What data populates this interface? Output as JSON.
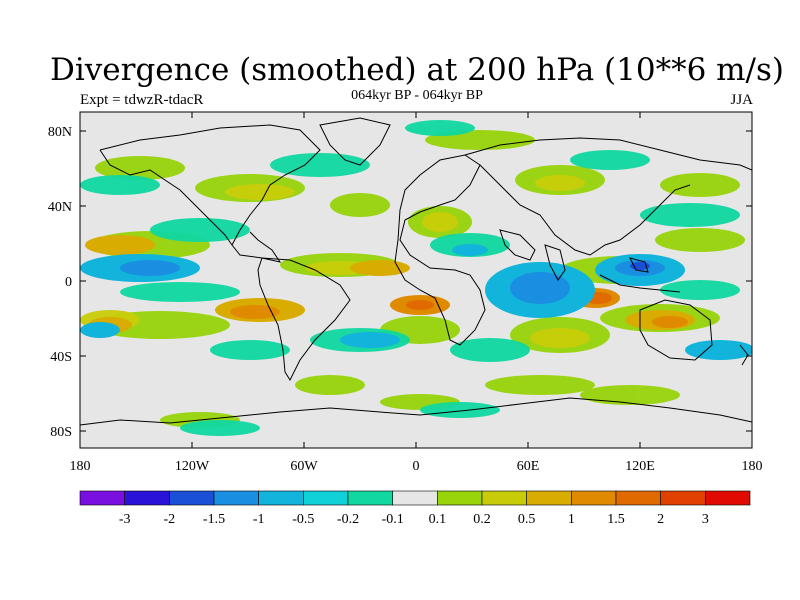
{
  "title": "Divergence (smoothed) at 200 hPa (10**6 m/s)",
  "experiment": "Expt = tdwzR-tdacR",
  "period": "064kyr BP - 064kyr BP",
  "season": "JJA",
  "lat_ticks": [
    "80N",
    "40N",
    "0",
    "40S",
    "80S"
  ],
  "lon_ticks": [
    "180",
    "120W",
    "60W",
    "0",
    "60E",
    "120E",
    "180"
  ],
  "colorbar": {
    "labels": [
      "-3",
      "-2",
      "-1.5",
      "-1",
      "-0.5",
      "-0.2",
      "-0.1",
      "0.1",
      "0.2",
      "0.5",
      "1",
      "1.5",
      "2",
      "3"
    ],
    "colors": [
      "#7a10e0",
      "#2a12d8",
      "#1a50d8",
      "#1a8ee0",
      "#12b4dc",
      "#10d0d8",
      "#10d8a0",
      "#e6e6e6",
      "#98d40a",
      "#c8cc08",
      "#d8ac00",
      "#e08a00",
      "#e06a00",
      "#e04000",
      "#e00a00"
    ]
  },
  "colors": {
    "land_outline": "#000000",
    "neutral": "#e6e6e6"
  }
}
